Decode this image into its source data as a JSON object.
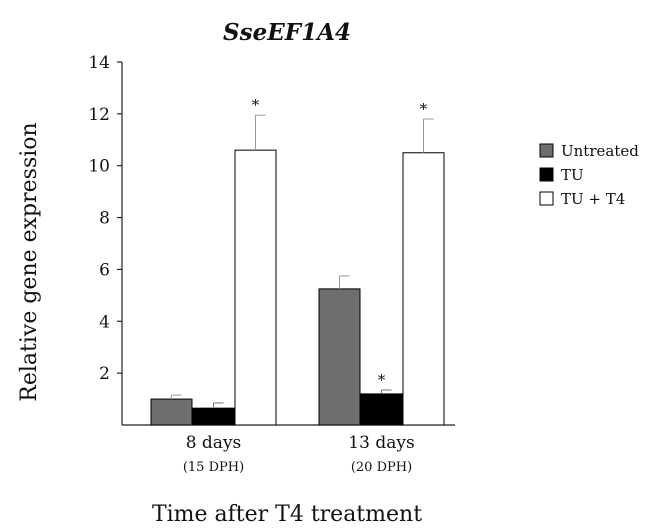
{
  "chart_data": {
    "type": "bar",
    "title": "SseEF1A4",
    "xlabel": "Time after T4 treatment",
    "ylabel": "Relative gene expression",
    "categories": [
      "8 days",
      "13 days"
    ],
    "category_sublabels": [
      "(15 DPH)",
      "(20 DPH)"
    ],
    "ylim": [
      0,
      14
    ],
    "yticks": [
      2,
      4,
      6,
      8,
      10,
      12,
      14
    ],
    "grid": false,
    "legend_position": "right",
    "significance_marker": "*",
    "series": [
      {
        "name": "Untreated",
        "color": "#6e6e6e",
        "values": [
          1.0,
          5.25
        ],
        "errors": [
          0.15,
          0.5
        ],
        "significant": [
          false,
          false
        ]
      },
      {
        "name": "TU",
        "color": "#000000",
        "values": [
          0.65,
          1.2
        ],
        "errors": [
          0.2,
          0.15
        ],
        "significant": [
          false,
          true
        ]
      },
      {
        "name": "TU + T4",
        "color": "#ffffff",
        "values": [
          10.6,
          10.5
        ],
        "errors": [
          1.35,
          1.3
        ],
        "significant": [
          true,
          true
        ]
      }
    ]
  }
}
